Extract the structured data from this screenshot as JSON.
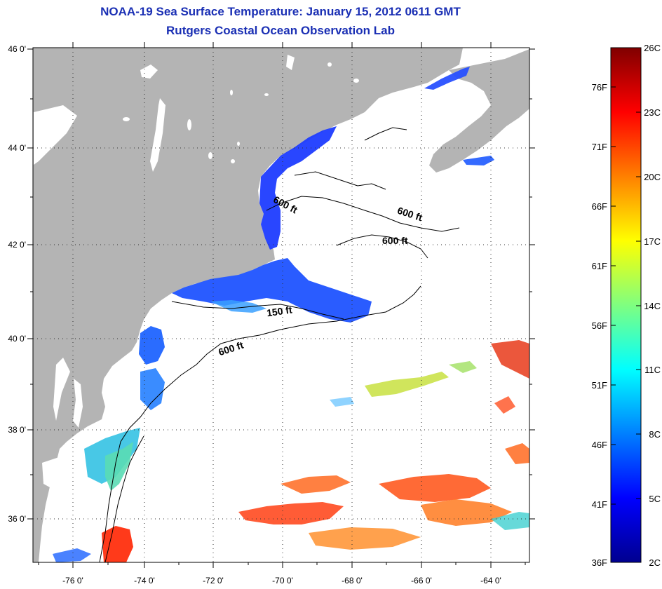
{
  "title": {
    "line1": "NOAA-19 Sea Surface Temperature:  January 15, 2012 0611 GMT",
    "line2": "Rutgers Coastal Ocean Observation Lab"
  },
  "map": {
    "lon_ticks": [
      "-76 0'",
      "-74 0'",
      "-72 0'",
      "-70 0'",
      "-68 0'",
      "-66 0'",
      "-64 0'"
    ],
    "lat_ticks": [
      "46 0'",
      "44 0'",
      "42 0'",
      "40 0'",
      "38 0'",
      "36 0'"
    ],
    "contour_labels": [
      "600 ft",
      "600 ft",
      "600 ft",
      "150 ft",
      "600 ft"
    ],
    "colors": {
      "land": "#b4b4b4",
      "ocean_nodata": "#ffffff",
      "title": "#1a2fb4"
    }
  },
  "colorbar": {
    "fahrenheit_labels": [
      "76F",
      "71F",
      "66F",
      "61F",
      "56F",
      "51F",
      "46F",
      "41F",
      "36F"
    ],
    "celsius_labels": [
      "26C",
      "23C",
      "20C",
      "17C",
      "14C",
      "11C",
      "8C",
      "5C",
      "2C"
    ],
    "range_celsius": [
      2,
      26
    ],
    "colormap": "jet"
  }
}
